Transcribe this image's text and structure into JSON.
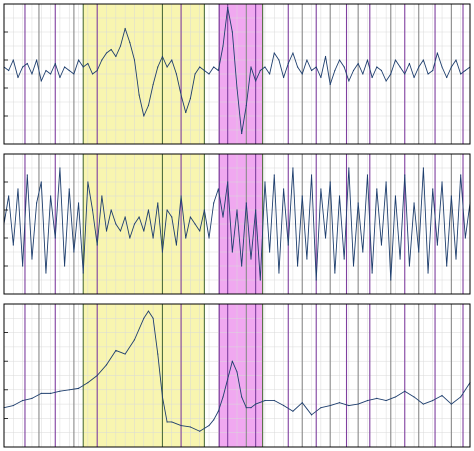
{
  "figure": {
    "colors": {
      "background": "#ffffff",
      "grid": "#d9d9d9",
      "frame": "#000000",
      "trace": "#1f3f6e",
      "yellow_band": "#f8f5b0",
      "magenta_band": "#f0a8f0",
      "marker_purple": "#7f3f9f",
      "marker_gray": "#8a8a8a",
      "marker_green": "#4f6f3f"
    }
  },
  "chart_data": [
    {
      "type": "line",
      "panel": 1,
      "title": "",
      "xlabel": "",
      "ylabel": "",
      "grid": true,
      "xlim": [
        0,
        1000
      ],
      "ylim": [
        -1,
        1
      ],
      "highlight_regions": [
        {
          "x0": 170,
          "x1": 430,
          "color": "yellow"
        },
        {
          "x0": 460,
          "x1": 555,
          "color": "magenta"
        }
      ],
      "event_markers": [
        {
          "x": 45,
          "color": "purple"
        },
        {
          "x": 75,
          "color": "gray"
        },
        {
          "x": 110,
          "color": "purple"
        },
        {
          "x": 150,
          "color": "gray"
        },
        {
          "x": 170,
          "color": "green"
        },
        {
          "x": 200,
          "color": "purple"
        },
        {
          "x": 340,
          "color": "green"
        },
        {
          "x": 380,
          "color": "purple"
        },
        {
          "x": 430,
          "color": "green"
        },
        {
          "x": 462,
          "color": "purple"
        },
        {
          "x": 480,
          "color": "purple"
        },
        {
          "x": 520,
          "color": "gray"
        },
        {
          "x": 540,
          "color": "purple"
        },
        {
          "x": 555,
          "color": "green"
        },
        {
          "x": 610,
          "color": "purple"
        },
        {
          "x": 640,
          "color": "gray"
        },
        {
          "x": 670,
          "color": "purple"
        },
        {
          "x": 700,
          "color": "gray"
        },
        {
          "x": 735,
          "color": "purple"
        },
        {
          "x": 760,
          "color": "gray"
        },
        {
          "x": 785,
          "color": "purple"
        },
        {
          "x": 830,
          "color": "gray"
        },
        {
          "x": 860,
          "color": "purple"
        },
        {
          "x": 890,
          "color": "gray"
        },
        {
          "x": 925,
          "color": "purple"
        },
        {
          "x": 960,
          "color": "gray"
        },
        {
          "x": 985,
          "color": "purple"
        }
      ],
      "series": [
        {
          "x": [
            0,
            10,
            20,
            30,
            40,
            50,
            60,
            70,
            80,
            90,
            100,
            110,
            120,
            130,
            140,
            150,
            160,
            170,
            180,
            190,
            200,
            210,
            220,
            230,
            240,
            250,
            260,
            270,
            280,
            290,
            300,
            310,
            320,
            330,
            340,
            350,
            360,
            370,
            380,
            390,
            400,
            410,
            420,
            430,
            440,
            450,
            460,
            470,
            480,
            490,
            500,
            510,
            520,
            530,
            540,
            550,
            560,
            570,
            580,
            590,
            600,
            610,
            620,
            630,
            640,
            650,
            660,
            670,
            680,
            690,
            700,
            710,
            720,
            730,
            740,
            750,
            760,
            770,
            780,
            790,
            800,
            810,
            820,
            830,
            840,
            850,
            860,
            870,
            880,
            890,
            900,
            910,
            920,
            930,
            940,
            950,
            960,
            970,
            980,
            990,
            1000
          ],
          "values": [
            0.1,
            0.05,
            0.2,
            -0.05,
            0.1,
            0.15,
            0.0,
            0.2,
            -0.1,
            0.05,
            0.0,
            0.15,
            -0.05,
            0.1,
            0.05,
            0.0,
            0.2,
            0.1,
            0.15,
            0.0,
            0.05,
            0.2,
            0.3,
            0.35,
            0.25,
            0.4,
            0.65,
            0.45,
            0.2,
            -0.3,
            -0.6,
            -0.45,
            -0.15,
            0.1,
            0.25,
            0.1,
            0.2,
            0.0,
            -0.3,
            -0.55,
            -0.35,
            0.0,
            0.1,
            0.05,
            0.0,
            0.1,
            0.05,
            0.4,
            0.95,
            0.6,
            -0.2,
            -0.85,
            -0.45,
            0.1,
            -0.1,
            0.05,
            0.1,
            0.0,
            0.3,
            0.2,
            -0.05,
            0.15,
            0.3,
            0.1,
            0.0,
            0.2,
            0.05,
            0.1,
            -0.05,
            0.25,
            -0.15,
            0.05,
            0.2,
            0.1,
            -0.1,
            0.05,
            0.15,
            0.0,
            0.2,
            -0.05,
            0.1,
            0.05,
            -0.1,
            0.0,
            0.2,
            0.1,
            0.0,
            0.15,
            -0.05,
            0.1,
            0.2,
            0.0,
            0.05,
            0.3,
            0.1,
            -0.05,
            0.1,
            0.2,
            0.0,
            0.05,
            0.1
          ]
        }
      ]
    },
    {
      "type": "line",
      "panel": 2,
      "title": "",
      "xlabel": "",
      "ylabel": "",
      "grid": true,
      "xlim": [
        0,
        1000
      ],
      "ylim": [
        -1,
        1
      ],
      "highlight_regions": [
        {
          "x0": 170,
          "x1": 430,
          "color": "yellow"
        },
        {
          "x0": 460,
          "x1": 555,
          "color": "magenta"
        }
      ],
      "event_markers": [
        {
          "x": 45,
          "color": "purple"
        },
        {
          "x": 75,
          "color": "gray"
        },
        {
          "x": 110,
          "color": "purple"
        },
        {
          "x": 150,
          "color": "gray"
        },
        {
          "x": 170,
          "color": "green"
        },
        {
          "x": 200,
          "color": "purple"
        },
        {
          "x": 340,
          "color": "green"
        },
        {
          "x": 380,
          "color": "purple"
        },
        {
          "x": 430,
          "color": "green"
        },
        {
          "x": 462,
          "color": "purple"
        },
        {
          "x": 480,
          "color": "purple"
        },
        {
          "x": 520,
          "color": "gray"
        },
        {
          "x": 540,
          "color": "purple"
        },
        {
          "x": 555,
          "color": "green"
        },
        {
          "x": 610,
          "color": "purple"
        },
        {
          "x": 640,
          "color": "gray"
        },
        {
          "x": 670,
          "color": "purple"
        },
        {
          "x": 700,
          "color": "gray"
        },
        {
          "x": 735,
          "color": "purple"
        },
        {
          "x": 760,
          "color": "gray"
        },
        {
          "x": 785,
          "color": "purple"
        },
        {
          "x": 830,
          "color": "gray"
        },
        {
          "x": 860,
          "color": "purple"
        },
        {
          "x": 890,
          "color": "gray"
        },
        {
          "x": 925,
          "color": "purple"
        },
        {
          "x": 960,
          "color": "gray"
        },
        {
          "x": 985,
          "color": "purple"
        }
      ],
      "series": [
        {
          "x": [
            0,
            10,
            20,
            30,
            40,
            50,
            60,
            70,
            80,
            90,
            100,
            110,
            120,
            130,
            140,
            150,
            160,
            170,
            180,
            190,
            200,
            210,
            220,
            230,
            240,
            250,
            260,
            270,
            280,
            290,
            300,
            310,
            320,
            330,
            340,
            350,
            360,
            370,
            380,
            390,
            400,
            410,
            420,
            430,
            440,
            450,
            460,
            470,
            480,
            490,
            500,
            510,
            520,
            530,
            540,
            550,
            560,
            570,
            580,
            590,
            600,
            610,
            620,
            630,
            640,
            650,
            660,
            670,
            680,
            690,
            700,
            710,
            720,
            730,
            740,
            750,
            760,
            770,
            780,
            790,
            800,
            810,
            820,
            830,
            840,
            850,
            860,
            870,
            880,
            890,
            900,
            910,
            920,
            930,
            940,
            950,
            960,
            970,
            980,
            990,
            1000
          ],
          "values": [
            0.0,
            0.4,
            -0.3,
            0.5,
            -0.6,
            0.7,
            -0.5,
            0.3,
            0.6,
            -0.7,
            0.4,
            -0.2,
            0.8,
            -0.6,
            0.5,
            -0.4,
            0.3,
            -0.7,
            0.6,
            0.2,
            -0.3,
            0.4,
            -0.1,
            0.2,
            0.0,
            -0.1,
            0.1,
            -0.2,
            0.0,
            0.1,
            -0.1,
            0.2,
            -0.2,
            0.3,
            -0.4,
            0.2,
            0.1,
            -0.3,
            0.4,
            -0.2,
            0.1,
            0.0,
            -0.1,
            0.2,
            -0.2,
            0.3,
            0.5,
            0.1,
            0.6,
            -0.4,
            0.2,
            -0.6,
            0.3,
            -0.5,
            0.2,
            -0.8,
            0.6,
            -0.4,
            0.7,
            -0.7,
            0.5,
            -0.3,
            0.8,
            -0.6,
            0.4,
            -0.5,
            0.7,
            -0.8,
            0.5,
            -0.2,
            0.6,
            -0.7,
            0.4,
            -0.5,
            0.8,
            -0.6,
            0.3,
            -0.4,
            0.7,
            -0.7,
            0.5,
            -0.3,
            0.6,
            -0.8,
            0.4,
            -0.5,
            0.7,
            -0.6,
            0.3,
            -0.4,
            0.8,
            -0.7,
            0.5,
            -0.3,
            0.6,
            -0.6,
            0.4,
            -0.5,
            0.7,
            -0.2,
            0.3
          ]
        }
      ]
    },
    {
      "type": "line",
      "panel": 3,
      "title": "",
      "xlabel": "",
      "ylabel": "",
      "grid": true,
      "xlim": [
        0,
        1000
      ],
      "ylim": [
        -1,
        1
      ],
      "highlight_regions": [
        {
          "x0": 170,
          "x1": 430,
          "color": "yellow"
        },
        {
          "x0": 460,
          "x1": 555,
          "color": "magenta"
        }
      ],
      "event_markers": [
        {
          "x": 45,
          "color": "purple"
        },
        {
          "x": 75,
          "color": "gray"
        },
        {
          "x": 110,
          "color": "purple"
        },
        {
          "x": 150,
          "color": "gray"
        },
        {
          "x": 170,
          "color": "green"
        },
        {
          "x": 200,
          "color": "purple"
        },
        {
          "x": 340,
          "color": "green"
        },
        {
          "x": 380,
          "color": "purple"
        },
        {
          "x": 430,
          "color": "green"
        },
        {
          "x": 462,
          "color": "purple"
        },
        {
          "x": 480,
          "color": "purple"
        },
        {
          "x": 520,
          "color": "gray"
        },
        {
          "x": 540,
          "color": "purple"
        },
        {
          "x": 555,
          "color": "green"
        },
        {
          "x": 610,
          "color": "purple"
        },
        {
          "x": 640,
          "color": "gray"
        },
        {
          "x": 670,
          "color": "purple"
        },
        {
          "x": 700,
          "color": "gray"
        },
        {
          "x": 735,
          "color": "purple"
        },
        {
          "x": 760,
          "color": "gray"
        },
        {
          "x": 785,
          "color": "purple"
        },
        {
          "x": 830,
          "color": "gray"
        },
        {
          "x": 860,
          "color": "purple"
        },
        {
          "x": 890,
          "color": "gray"
        },
        {
          "x": 925,
          "color": "purple"
        },
        {
          "x": 960,
          "color": "gray"
        },
        {
          "x": 985,
          "color": "purple"
        }
      ],
      "series": [
        {
          "x": [
            0,
            20,
            40,
            60,
            80,
            100,
            120,
            140,
            160,
            180,
            200,
            220,
            240,
            260,
            280,
            300,
            310,
            320,
            330,
            340,
            350,
            360,
            380,
            400,
            420,
            440,
            450,
            460,
            470,
            480,
            490,
            500,
            510,
            520,
            530,
            540,
            560,
            580,
            600,
            620,
            640,
            660,
            680,
            700,
            720,
            740,
            760,
            780,
            800,
            820,
            840,
            860,
            880,
            900,
            920,
            940,
            960,
            980,
            1000
          ],
          "values": [
            -0.45,
            -0.42,
            -0.35,
            -0.32,
            -0.25,
            -0.25,
            -0.22,
            -0.2,
            -0.18,
            -0.1,
            0.0,
            0.15,
            0.35,
            0.3,
            0.5,
            0.8,
            0.9,
            0.8,
            0.3,
            -0.3,
            -0.65,
            -0.65,
            -0.7,
            -0.72,
            -0.78,
            -0.7,
            -0.62,
            -0.5,
            -0.3,
            -0.05,
            0.2,
            0.05,
            -0.3,
            -0.45,
            -0.45,
            -0.4,
            -0.35,
            -0.35,
            -0.42,
            -0.5,
            -0.38,
            -0.55,
            -0.45,
            -0.42,
            -0.38,
            -0.42,
            -0.4,
            -0.35,
            -0.32,
            -0.35,
            -0.3,
            -0.22,
            -0.3,
            -0.4,
            -0.35,
            -0.28,
            -0.4,
            -0.3,
            -0.1
          ]
        }
      ]
    }
  ]
}
